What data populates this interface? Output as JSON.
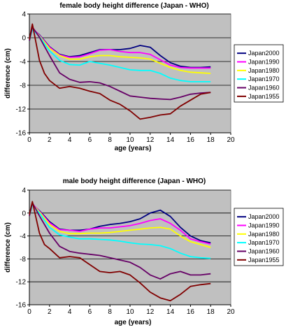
{
  "chart_data": [
    {
      "type": "line",
      "title": "female body height difference (Japan - WHO)",
      "xlabel": "age (years)",
      "ylabel": "difference (cm)",
      "xlim": [
        0,
        20
      ],
      "ylim": [
        -16,
        4
      ],
      "xticks": [
        0,
        2,
        4,
        6,
        8,
        10,
        12,
        14,
        16,
        18,
        20
      ],
      "yticks": [
        4,
        0,
        -4,
        -8,
        -12,
        -16
      ],
      "grid": "horizontal",
      "plot_background": "#c0c0c0",
      "legend_position": "right",
      "series": [
        {
          "name": "Japan2000",
          "color": "#000080",
          "x": [
            0,
            0.3,
            1,
            2,
            3,
            4,
            5,
            6,
            7,
            8,
            9,
            10,
            11,
            12,
            13,
            14,
            15,
            16,
            17,
            18
          ],
          "y": [
            -0.5,
            1.5,
            0.5,
            -1.5,
            -2.8,
            -3.2,
            -3.0,
            -2.5,
            -2.0,
            -2.0,
            -2.0,
            -1.8,
            -1.3,
            -1.6,
            -3.0,
            -4.2,
            -4.8,
            -5.0,
            -5.0,
            -4.9
          ]
        },
        {
          "name": "Japan1990",
          "color": "#ff00ff",
          "x": [
            0,
            0.3,
            1,
            2,
            3,
            4,
            5,
            6,
            7,
            8,
            9,
            10,
            11,
            12,
            13,
            14,
            15,
            16,
            17,
            18
          ],
          "y": [
            -0.5,
            1.6,
            0.4,
            -1.6,
            -2.9,
            -3.3,
            -3.2,
            -2.7,
            -2.1,
            -2.0,
            -2.3,
            -2.5,
            -2.5,
            -2.8,
            -3.7,
            -4.6,
            -5.0,
            -5.1,
            -5.1,
            -5.1
          ]
        },
        {
          "name": "Japan1980",
          "color": "#ffff00",
          "x": [
            0,
            0.3,
            1,
            2,
            3,
            4,
            5,
            6,
            7,
            8,
            9,
            10,
            11,
            12,
            13,
            14,
            15,
            16,
            17,
            18
          ],
          "y": [
            -0.5,
            1.5,
            0.3,
            -1.8,
            -3.0,
            -3.6,
            -3.6,
            -3.2,
            -3.0,
            -3.0,
            -3.2,
            -3.3,
            -3.4,
            -3.6,
            -4.3,
            -5.0,
            -5.5,
            -5.8,
            -5.9,
            -6.0
          ]
        },
        {
          "name": "Japan1970",
          "color": "#00ffff",
          "x": [
            0,
            0.3,
            1,
            2,
            3,
            4,
            5,
            6,
            7,
            8,
            9,
            10,
            11,
            12,
            13,
            14,
            15,
            16,
            17,
            18
          ],
          "y": [
            -0.5,
            1.4,
            0.2,
            -2.2,
            -3.8,
            -4.5,
            -4.6,
            -4.0,
            -4.3,
            -4.6,
            -5.0,
            -5.4,
            -5.5,
            -5.5,
            -6.0,
            -6.8,
            -7.2,
            -7.4,
            -7.4,
            -7.4
          ]
        },
        {
          "name": "Japan1960",
          "color": "#660066",
          "x": [
            0,
            0.3,
            1,
            2,
            3,
            4,
            5,
            6,
            7,
            8,
            9,
            10,
            11,
            12,
            13,
            14,
            15,
            16,
            17,
            18
          ],
          "y": [
            -0.5,
            1.8,
            0.1,
            -3.0,
            -5.9,
            -7.0,
            -7.5,
            -7.4,
            -7.6,
            -8.2,
            -9.0,
            -9.8,
            -10.0,
            -10.2,
            -10.3,
            -10.4,
            -10.0,
            -9.5,
            -9.3,
            -9.2
          ]
        },
        {
          "name": "Japan1955",
          "color": "#800000",
          "x": [
            0,
            0.3,
            1,
            1.5,
            2,
            3,
            4,
            5,
            6,
            7,
            8,
            9,
            10,
            11,
            12,
            13,
            14,
            15,
            16,
            17,
            18
          ],
          "y": [
            -0.3,
            2.3,
            -3.8,
            -6.0,
            -7.2,
            -8.5,
            -8.2,
            -8.5,
            -9.0,
            -9.4,
            -10.5,
            -11.2,
            -12.3,
            -13.7,
            -13.4,
            -13.0,
            -12.8,
            -11.5,
            -10.5,
            -9.5,
            -9.2
          ]
        }
      ]
    },
    {
      "type": "line",
      "title": "male body height difference (Japan - WHO)",
      "xlabel": "age (years)",
      "ylabel": "difference (cm)",
      "xlim": [
        0,
        20
      ],
      "ylim": [
        -16,
        4
      ],
      "xticks": [
        0,
        2,
        4,
        6,
        8,
        10,
        12,
        14,
        16,
        18,
        20
      ],
      "yticks": [
        4,
        0,
        -4,
        -8,
        -12,
        -16
      ],
      "grid": "horizontal",
      "plot_background": "#c0c0c0",
      "legend_position": "right",
      "series": [
        {
          "name": "Japan2000",
          "color": "#000080",
          "x": [
            0,
            0.3,
            1,
            2,
            3,
            4,
            5,
            6,
            7,
            8,
            9,
            10,
            11,
            12,
            13,
            14,
            15,
            16,
            17,
            18
          ],
          "y": [
            -0.5,
            1.5,
            0.4,
            -1.5,
            -2.8,
            -3.0,
            -3.0,
            -2.8,
            -2.3,
            -2.0,
            -1.8,
            -1.5,
            -1.0,
            0.0,
            0.5,
            -0.6,
            -2.5,
            -4.0,
            -4.8,
            -5.2
          ]
        },
        {
          "name": "Japan1990",
          "color": "#ff00ff",
          "x": [
            0,
            0.3,
            1,
            2,
            3,
            4,
            5,
            6,
            7,
            8,
            9,
            10,
            11,
            12,
            13,
            14,
            15,
            16,
            17,
            18
          ],
          "y": [
            -0.5,
            1.6,
            0.3,
            -1.7,
            -2.9,
            -3.0,
            -3.2,
            -2.8,
            -2.6,
            -2.6,
            -2.4,
            -2.2,
            -1.8,
            -1.3,
            -1.0,
            -1.8,
            -3.0,
            -4.5,
            -5.0,
            -5.4
          ]
        },
        {
          "name": "Japan1980",
          "color": "#ffff00",
          "x": [
            0,
            0.3,
            1,
            2,
            3,
            4,
            5,
            6,
            7,
            8,
            9,
            10,
            11,
            12,
            13,
            14,
            15,
            16,
            17,
            18
          ],
          "y": [
            -0.5,
            1.5,
            0.2,
            -2.0,
            -3.2,
            -3.6,
            -3.6,
            -3.5,
            -3.5,
            -3.4,
            -3.2,
            -3.0,
            -2.8,
            -2.6,
            -2.5,
            -2.8,
            -4.0,
            -5.0,
            -5.5,
            -6.0
          ]
        },
        {
          "name": "Japan1970",
          "color": "#00ffff",
          "x": [
            0,
            0.3,
            1,
            2,
            3,
            4,
            5,
            6,
            7,
            8,
            9,
            10,
            11,
            12,
            13,
            14,
            15,
            16,
            17,
            18
          ],
          "y": [
            -0.5,
            1.4,
            0.0,
            -2.5,
            -3.8,
            -4.2,
            -4.5,
            -4.5,
            -4.6,
            -4.7,
            -4.9,
            -5.2,
            -5.4,
            -5.5,
            -5.7,
            -6.2,
            -7.0,
            -7.6,
            -7.8,
            -7.9
          ]
        },
        {
          "name": "Japan1960",
          "color": "#660066",
          "x": [
            0,
            0.3,
            1,
            2,
            3,
            4,
            5,
            6,
            7,
            8,
            9,
            10,
            11,
            12,
            13,
            14,
            15,
            16,
            17,
            18
          ],
          "y": [
            -0.5,
            1.8,
            -0.5,
            -3.5,
            -5.8,
            -6.7,
            -7.0,
            -7.2,
            -7.4,
            -7.8,
            -8.2,
            -8.6,
            -9.5,
            -10.8,
            -11.5,
            -10.6,
            -10.2,
            -10.8,
            -10.8,
            -10.6
          ]
        },
        {
          "name": "Japan1955",
          "color": "#800000",
          "x": [
            0,
            0.3,
            1,
            1.5,
            2,
            3,
            4,
            5,
            6,
            7,
            8,
            9,
            10,
            11,
            12,
            13,
            14,
            15,
            16,
            17,
            18
          ],
          "y": [
            -0.3,
            2.0,
            -3.5,
            -5.5,
            -6.2,
            -7.8,
            -7.6,
            -7.8,
            -9.0,
            -10.2,
            -10.4,
            -10.2,
            -10.8,
            -12.2,
            -13.8,
            -14.8,
            -15.3,
            -14.2,
            -12.8,
            -12.5,
            -12.3
          ]
        }
      ]
    }
  ]
}
